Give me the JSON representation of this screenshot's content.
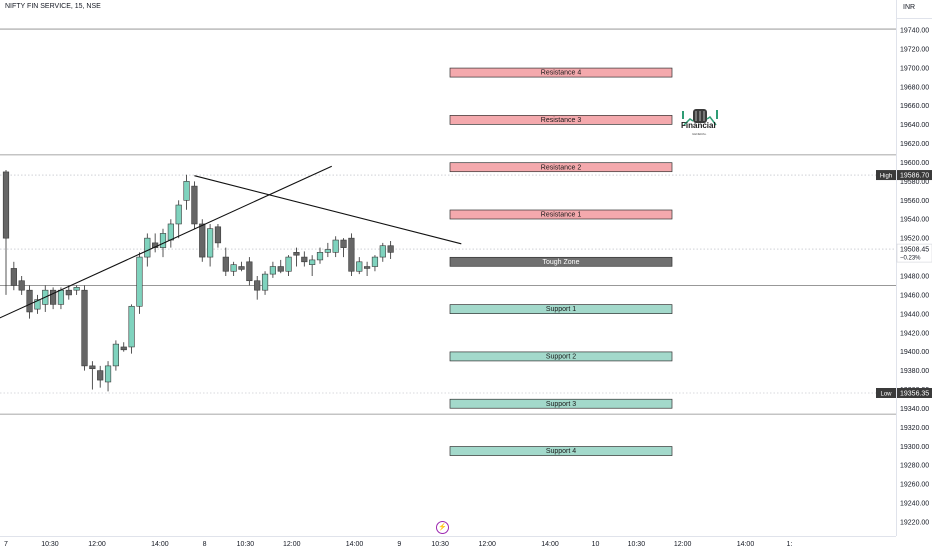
{
  "header": {
    "symbol": "NIFTY FIN SERVICE, 15, NSE",
    "currency": "INR"
  },
  "watermark": {
    "brand": "Financial",
    "sub": "GENERAL"
  },
  "chart_data": {
    "type": "candlestick",
    "ylim": [
      19210,
      19760
    ],
    "y_ticks": [
      19740,
      19720,
      19700,
      19680,
      19660,
      19640,
      19620,
      19600,
      19580,
      19560,
      19540,
      19520,
      19500,
      19480,
      19460,
      19440,
      19420,
      19400,
      19380,
      19360,
      19340,
      19320,
      19300,
      19280,
      19260,
      19240,
      19220
    ],
    "x_ticks": [
      {
        "label": "7",
        "i": 0
      },
      {
        "label": "10:30",
        "i": 5.6
      },
      {
        "label": "12:00",
        "i": 11.6
      },
      {
        "label": "14:00",
        "i": 19.6
      },
      {
        "label": "8",
        "i": 25.3
      },
      {
        "label": "10:30",
        "i": 30.5
      },
      {
        "label": "12:00",
        "i": 36.4
      },
      {
        "label": "14:00",
        "i": 44.4
      },
      {
        "label": "9",
        "i": 50.1
      },
      {
        "label": "10:30",
        "i": 55.3
      },
      {
        "label": "12:00",
        "i": 61.3
      },
      {
        "label": "14:00",
        "i": 69.3
      },
      {
        "label": "10",
        "i": 75.1
      },
      {
        "label": "10:30",
        "i": 80.3
      },
      {
        "label": "12:00",
        "i": 86.2
      },
      {
        "label": "14:00",
        "i": 94.2
      },
      {
        "label": "1:",
        "i": 99.8
      }
    ],
    "candles": [
      {
        "o": 19590,
        "h": 19592,
        "l": 19460,
        "c": 19520
      },
      {
        "o": 19488,
        "h": 19495,
        "l": 19465,
        "c": 19470
      },
      {
        "o": 19475,
        "h": 19480,
        "l": 19460,
        "c": 19465
      },
      {
        "o": 19465,
        "h": 19470,
        "l": 19435,
        "c": 19442
      },
      {
        "o": 19445,
        "h": 19460,
        "l": 19440,
        "c": 19455
      },
      {
        "o": 19450,
        "h": 19470,
        "l": 19442,
        "c": 19465
      },
      {
        "o": 19465,
        "h": 19468,
        "l": 19445,
        "c": 19450
      },
      {
        "o": 19450,
        "h": 19468,
        "l": 19445,
        "c": 19465
      },
      {
        "o": 19465,
        "h": 19470,
        "l": 19455,
        "c": 19460
      },
      {
        "o": 19465,
        "h": 19470,
        "l": 19460,
        "c": 19468
      },
      {
        "o": 19465,
        "h": 19470,
        "l": 19380,
        "c": 19385
      },
      {
        "o": 19385,
        "h": 19390,
        "l": 19360,
        "c": 19382
      },
      {
        "o": 19380,
        "h": 19385,
        "l": 19362,
        "c": 19370
      },
      {
        "o": 19368,
        "h": 19390,
        "l": 19358,
        "c": 19385
      },
      {
        "o": 19385,
        "h": 19412,
        "l": 19380,
        "c": 19408
      },
      {
        "o": 19405,
        "h": 19410,
        "l": 19400,
        "c": 19402
      },
      {
        "o": 19405,
        "h": 19450,
        "l": 19398,
        "c": 19448
      },
      {
        "o": 19448,
        "h": 19505,
        "l": 19440,
        "c": 19500
      },
      {
        "o": 19500,
        "h": 19525,
        "l": 19490,
        "c": 19520
      },
      {
        "o": 19515,
        "h": 19525,
        "l": 19505,
        "c": 19510
      },
      {
        "o": 19510,
        "h": 19530,
        "l": 19500,
        "c": 19525
      },
      {
        "o": 19518,
        "h": 19540,
        "l": 19510,
        "c": 19535
      },
      {
        "o": 19535,
        "h": 19560,
        "l": 19520,
        "c": 19555
      },
      {
        "o": 19560,
        "h": 19587,
        "l": 19550,
        "c": 19580
      },
      {
        "o": 19575,
        "h": 19580,
        "l": 19530,
        "c": 19535
      },
      {
        "o": 19535,
        "h": 19540,
        "l": 19495,
        "c": 19500
      },
      {
        "o": 19500,
        "h": 19535,
        "l": 19490,
        "c": 19530
      },
      {
        "o": 19532,
        "h": 19535,
        "l": 19510,
        "c": 19515
      },
      {
        "o": 19500,
        "h": 19510,
        "l": 19480,
        "c": 19485
      },
      {
        "o": 19485,
        "h": 19495,
        "l": 19480,
        "c": 19492
      },
      {
        "o": 19490,
        "h": 19495,
        "l": 19485,
        "c": 19487
      },
      {
        "o": 19495,
        "h": 19500,
        "l": 19470,
        "c": 19475
      },
      {
        "o": 19475,
        "h": 19480,
        "l": 19455,
        "c": 19465
      },
      {
        "o": 19465,
        "h": 19485,
        "l": 19460,
        "c": 19482
      },
      {
        "o": 19482,
        "h": 19495,
        "l": 19478,
        "c": 19490
      },
      {
        "o": 19490,
        "h": 19497,
        "l": 19483,
        "c": 19485
      },
      {
        "o": 19485,
        "h": 19502,
        "l": 19480,
        "c": 19500
      },
      {
        "o": 19505,
        "h": 19510,
        "l": 19490,
        "c": 19502
      },
      {
        "o": 19500,
        "h": 19506,
        "l": 19490,
        "c": 19495
      },
      {
        "o": 19492,
        "h": 19502,
        "l": 19480,
        "c": 19497
      },
      {
        "o": 19497,
        "h": 19510,
        "l": 19493,
        "c": 19505
      },
      {
        "o": 19505,
        "h": 19515,
        "l": 19500,
        "c": 19508
      },
      {
        "o": 19505,
        "h": 19522,
        "l": 19500,
        "c": 19518
      },
      {
        "o": 19518,
        "h": 19520,
        "l": 19500,
        "c": 19510
      },
      {
        "o": 19520,
        "h": 19525,
        "l": 19480,
        "c": 19485
      },
      {
        "o": 19485,
        "h": 19500,
        "l": 19482,
        "c": 19495
      },
      {
        "o": 19490,
        "h": 19495,
        "l": 19480,
        "c": 19488
      },
      {
        "o": 19490,
        "h": 19502,
        "l": 19485,
        "c": 19500
      },
      {
        "o": 19500,
        "h": 19515,
        "l": 19495,
        "c": 19512
      },
      {
        "o": 19512,
        "h": 19517,
        "l": 19498,
        "c": 19505
      }
    ],
    "zones": [
      {
        "label": "Resistance 4",
        "value": 19695,
        "kind": "resistance"
      },
      {
        "label": "Resistance 3",
        "value": 19645,
        "kind": "resistance"
      },
      {
        "label": "Resistance 2",
        "value": 19595,
        "kind": "resistance"
      },
      {
        "label": "Resistance 1",
        "value": 19545,
        "kind": "resistance"
      },
      {
        "label": "Tough Zone",
        "value": 19495,
        "kind": "neutral"
      },
      {
        "label": "Support 1",
        "value": 19445,
        "kind": "support"
      },
      {
        "label": "Support 2",
        "value": 19395,
        "kind": "support"
      },
      {
        "label": "Support 3",
        "value": 19345,
        "kind": "support"
      },
      {
        "label": "Support 4",
        "value": 19295,
        "kind": "support"
      }
    ],
    "horizontal_lines": [
      19741,
      19608,
      19470,
      19334
    ],
    "dotted_lines": [
      19586.7,
      19508.45,
      19356.35
    ],
    "trendlines": [
      {
        "from": {
          "i": -1.5,
          "v": 19433
        },
        "to": {
          "i": 41.5,
          "v": 19596
        }
      },
      {
        "from": {
          "i": 24,
          "v": 19586
        },
        "to": {
          "i": 58,
          "v": 19514
        }
      }
    ],
    "price_labels": [
      {
        "tag": "High",
        "value": "19586.70",
        "y": 19586.7,
        "dark": true
      },
      {
        "tag": "",
        "value": "19508.45",
        "sub": "−0.23%",
        "y": 19508.45,
        "dark": false
      },
      {
        "tag": "Low",
        "value": "19356.35",
        "y": 19356.35,
        "dark": true
      }
    ],
    "colors": {
      "up_fill": "#7fd3be",
      "up_stroke": "#3a3a3a",
      "down_fill": "#666666",
      "down_stroke": "#3a3a3a",
      "resistance_fill": "#f4a9ad",
      "support_fill": "#a3d9cb",
      "neutral_fill": "#707070",
      "grid_line": "#8a8a8a",
      "axis_text": "#131722"
    }
  }
}
